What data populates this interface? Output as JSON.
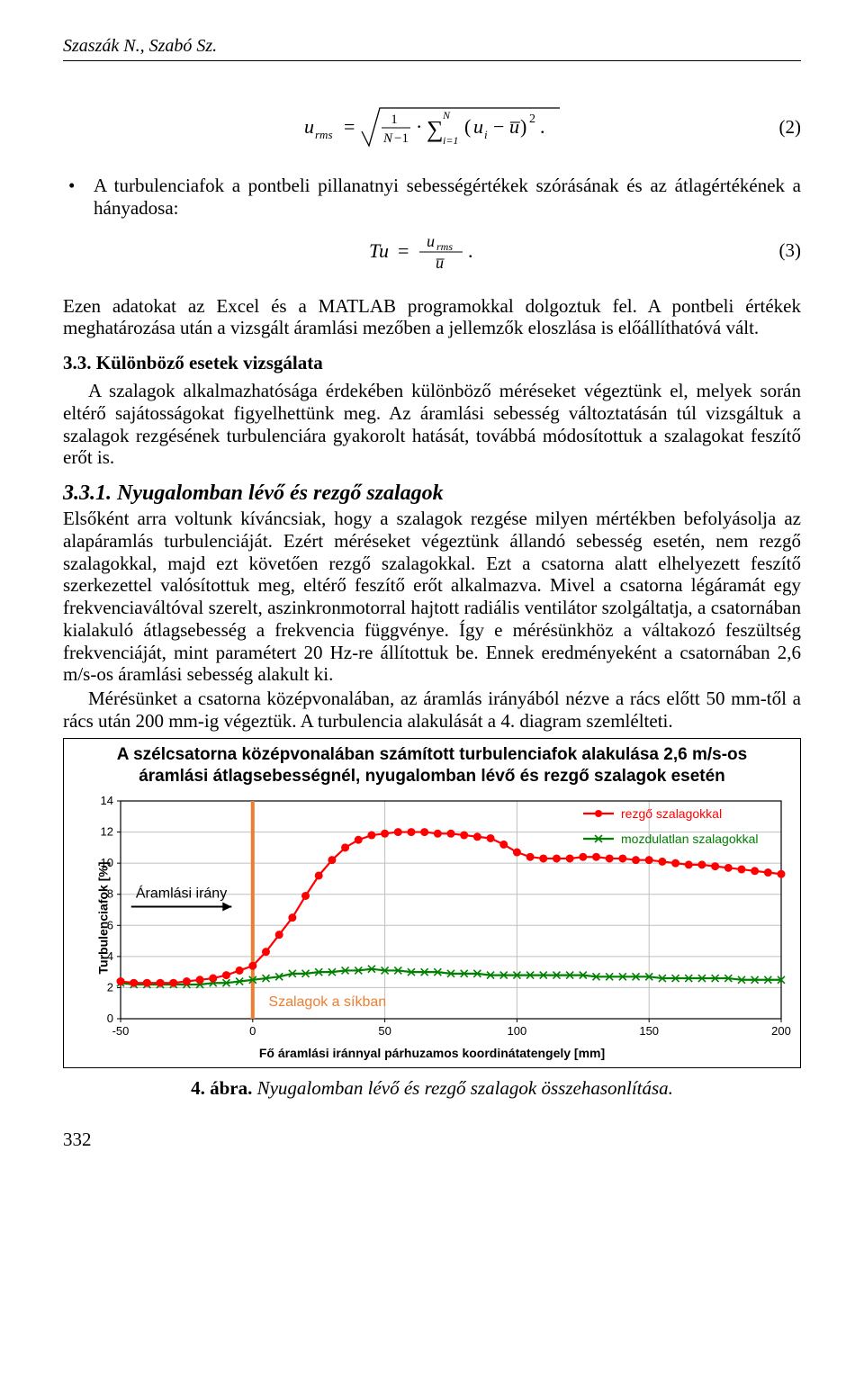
{
  "header_authors": "Szaszák N., Szabó Sz.",
  "eq2_label": "(2)",
  "eq3_label": "(3)",
  "bullet1": "A turbulenciafok a pontbeli pillanatnyi sebességértékek szórásának és az átlagértékének a hányadosa:",
  "p_after_eq3": "Ezen adatokat az Excel és a MATLAB programokkal dolgoztuk fel. A pontbeli értékek meghatározása után a vizsgált áramlási mezőben a jellemzők eloszlása is előállíthatóvá vált.",
  "sec33_title": "3.3. Különböző esetek vizsgálata",
  "sec33_body": "A szalagok alkalmazhatósága érdekében különböző méréseket végeztünk el, melyek során eltérő sajátosságokat figyelhettünk meg. Az áramlási sebesség változtatásán túl vizsgáltuk a szalagok rezgésének turbulenciára gyakorolt hatását, továbbá módosítottuk a szalagokat feszítő erőt is.",
  "sub331_title": "3.3.1.   Nyugalomban lévő és rezgő szalagok",
  "sub331_body": "Elsőként arra voltunk kíváncsiak, hogy a szalagok rezgése milyen mértékben befolyásolja az alapáramlás turbulenciáját. Ezért méréseket végeztünk állandó sebesség esetén, nem rezgő szalagokkal, majd ezt követően rezgő szalagokkal. Ezt a csatorna alatt elhelyezett feszítő szerkezettel valósítottuk meg, eltérő feszítő erőt alkalmazva. Mivel a csatorna légáramát egy frekvenciaváltóval szerelt, aszinkronmotorral hajtott radiális ventilátor szolgáltatja, a csatornában kialakuló átlagsebesség a frekvencia függvénye. Így e mérésünkhöz a váltakozó feszültség frekvenciáját, mint paramétert 20 Hz-re állítottuk be. Ennek eredményeként a csatornában 2,6 m/s-os áramlási sebesség alakult ki.",
  "sub331_body2": "Mérésünket a csatorna középvonalában, az áramlás irányából nézve a rács előtt 50 mm-től a rács után 200 mm-ig végeztük. A turbulencia alakulását a 4. diagram szemlélteti.",
  "fig4": {
    "title": "A szélcsatorna középvonalában számított turbulenciafok alakulása 2,6 m/s-os áramlási átlagsebességnél, nyugalomban lévő és rezgő szalagok esetén",
    "ylabel": "Turbulenciafok [%]",
    "xlabel": "Fő áramlási iránnyal párhuzamos koordinátatengely [mm]",
    "legend_rezgo": "rezgő szalagokkal",
    "legend_mozd": "mozdulatlan szalagokkal",
    "annot_aramlas": "Áramlási irány",
    "annot_szalagok": "Szalagok a síkban",
    "xlim": [
      -50,
      200
    ],
    "ylim": [
      0,
      14
    ],
    "xticks": [
      -50,
      0,
      50,
      100,
      150,
      200
    ],
    "yticks": [
      0,
      2,
      4,
      6,
      8,
      10,
      12,
      14
    ],
    "colors": {
      "rezgo": "#ff0000",
      "mozd": "#008000",
      "grid": "#bfbfbf",
      "axis": "#000000",
      "vline": "#ed7d31",
      "annot_szalag": "#ed7d31",
      "bg": "#ffffff"
    },
    "line_width": 2.2,
    "marker_size": 4.0,
    "marker_rezgo": "circle",
    "marker_mozd": "x",
    "rezgo_points": [
      [
        -50,
        2.4
      ],
      [
        -45,
        2.3
      ],
      [
        -40,
        2.3
      ],
      [
        -35,
        2.3
      ],
      [
        -30,
        2.3
      ],
      [
        -25,
        2.4
      ],
      [
        -20,
        2.5
      ],
      [
        -15,
        2.6
      ],
      [
        -10,
        2.8
      ],
      [
        -5,
        3.1
      ],
      [
        0,
        3.4
      ],
      [
        5,
        4.3
      ],
      [
        10,
        5.4
      ],
      [
        15,
        6.5
      ],
      [
        20,
        7.9
      ],
      [
        25,
        9.2
      ],
      [
        30,
        10.2
      ],
      [
        35,
        11.0
      ],
      [
        40,
        11.5
      ],
      [
        45,
        11.8
      ],
      [
        50,
        11.9
      ],
      [
        55,
        12.0
      ],
      [
        60,
        12.0
      ],
      [
        65,
        12.0
      ],
      [
        70,
        11.9
      ],
      [
        75,
        11.9
      ],
      [
        80,
        11.8
      ],
      [
        85,
        11.7
      ],
      [
        90,
        11.6
      ],
      [
        95,
        11.2
      ],
      [
        100,
        10.7
      ],
      [
        105,
        10.4
      ],
      [
        110,
        10.3
      ],
      [
        115,
        10.3
      ],
      [
        120,
        10.3
      ],
      [
        125,
        10.4
      ],
      [
        130,
        10.4
      ],
      [
        135,
        10.3
      ],
      [
        140,
        10.3
      ],
      [
        145,
        10.2
      ],
      [
        150,
        10.2
      ],
      [
        155,
        10.1
      ],
      [
        160,
        10.0
      ],
      [
        165,
        9.9
      ],
      [
        170,
        9.9
      ],
      [
        175,
        9.8
      ],
      [
        180,
        9.7
      ],
      [
        185,
        9.6
      ],
      [
        190,
        9.5
      ],
      [
        195,
        9.4
      ],
      [
        200,
        9.3
      ]
    ],
    "mozd_points": [
      [
        -50,
        2.3
      ],
      [
        -45,
        2.2
      ],
      [
        -40,
        2.2
      ],
      [
        -35,
        2.2
      ],
      [
        -30,
        2.2
      ],
      [
        -25,
        2.2
      ],
      [
        -20,
        2.2
      ],
      [
        -15,
        2.3
      ],
      [
        -10,
        2.3
      ],
      [
        -5,
        2.4
      ],
      [
        0,
        2.5
      ],
      [
        5,
        2.6
      ],
      [
        10,
        2.7
      ],
      [
        15,
        2.9
      ],
      [
        20,
        2.9
      ],
      [
        25,
        3.0
      ],
      [
        30,
        3.0
      ],
      [
        35,
        3.1
      ],
      [
        40,
        3.1
      ],
      [
        45,
        3.2
      ],
      [
        50,
        3.1
      ],
      [
        55,
        3.1
      ],
      [
        60,
        3.0
      ],
      [
        65,
        3.0
      ],
      [
        70,
        3.0
      ],
      [
        75,
        2.9
      ],
      [
        80,
        2.9
      ],
      [
        85,
        2.9
      ],
      [
        90,
        2.8
      ],
      [
        95,
        2.8
      ],
      [
        100,
        2.8
      ],
      [
        105,
        2.8
      ],
      [
        110,
        2.8
      ],
      [
        115,
        2.8
      ],
      [
        120,
        2.8
      ],
      [
        125,
        2.8
      ],
      [
        130,
        2.7
      ],
      [
        135,
        2.7
      ],
      [
        140,
        2.7
      ],
      [
        145,
        2.7
      ],
      [
        150,
        2.7
      ],
      [
        155,
        2.6
      ],
      [
        160,
        2.6
      ],
      [
        165,
        2.6
      ],
      [
        170,
        2.6
      ],
      [
        175,
        2.6
      ],
      [
        180,
        2.6
      ],
      [
        185,
        2.5
      ],
      [
        190,
        2.5
      ],
      [
        195,
        2.5
      ],
      [
        200,
        2.5
      ]
    ]
  },
  "caption4_label": "4. ábra.",
  "caption4_text": " Nyugalomban lévő és rezgő szalagok összehasonlítása.",
  "page_number": "332"
}
